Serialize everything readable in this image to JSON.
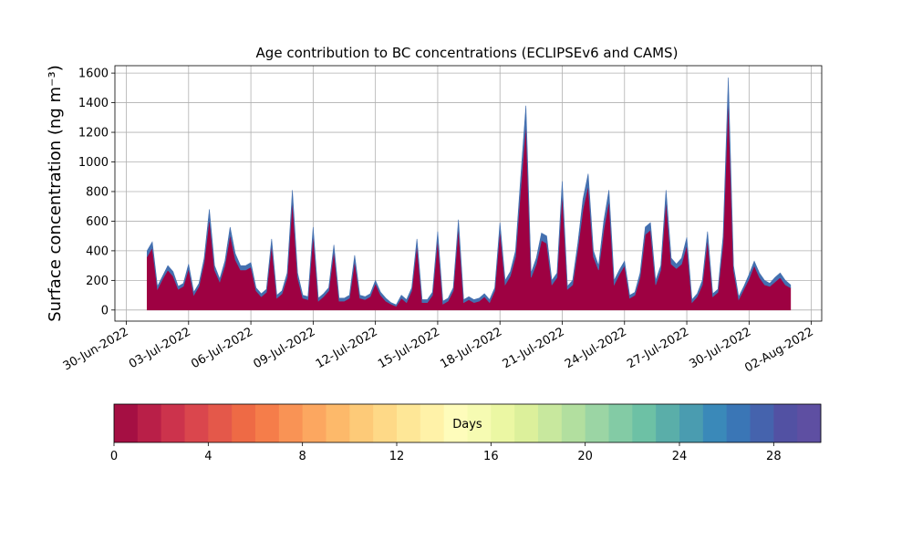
{
  "chart_data": {
    "type": "stacked_area",
    "title": "Age contribution to BC concentrations (ECLIPSEv6 and CAMS)",
    "ylabel": "Surface concentration (ng m⁻³)",
    "xlim": [
      -0.55,
      33.5
    ],
    "ylim": [
      -75,
      1650
    ],
    "xticks": [
      {
        "value": 0,
        "label": "30-Jun-2022"
      },
      {
        "value": 3,
        "label": "03-Jul-2022"
      },
      {
        "value": 6,
        "label": "06-Jul-2022"
      },
      {
        "value": 9,
        "label": "09-Jul-2022"
      },
      {
        "value": 12,
        "label": "12-Jul-2022"
      },
      {
        "value": 15,
        "label": "15-Jul-2022"
      },
      {
        "value": 18,
        "label": "18-Jul-2022"
      },
      {
        "value": 21,
        "label": "21-Jul-2022"
      },
      {
        "value": 24,
        "label": "24-Jul-2022"
      },
      {
        "value": 27,
        "label": "27-Jul-2022"
      },
      {
        "value": 30,
        "label": "30-Jul-2022"
      },
      {
        "value": 33,
        "label": "02-Aug-2022"
      }
    ],
    "yticks": [
      0,
      200,
      400,
      600,
      800,
      1000,
      1200,
      1400,
      1600
    ],
    "grid": true,
    "x": [
      1,
      1.25,
      1.5,
      1.75,
      2,
      2.25,
      2.5,
      2.75,
      3,
      3.25,
      3.5,
      3.75,
      4,
      4.25,
      4.5,
      4.75,
      5,
      5.25,
      5.5,
      5.75,
      6,
      6.25,
      6.5,
      6.75,
      7,
      7.25,
      7.5,
      7.75,
      8,
      8.25,
      8.5,
      8.75,
      9,
      9.25,
      9.5,
      9.75,
      10,
      10.25,
      10.5,
      10.75,
      11,
      11.25,
      11.5,
      11.75,
      12,
      12.25,
      12.5,
      12.75,
      13,
      13.25,
      13.5,
      13.75,
      14,
      14.25,
      14.5,
      14.75,
      15,
      15.25,
      15.5,
      15.75,
      16,
      16.25,
      16.5,
      16.75,
      17,
      17.25,
      17.5,
      17.75,
      18,
      18.25,
      18.5,
      18.75,
      19,
      19.25,
      19.5,
      19.75,
      20,
      20.25,
      20.5,
      20.75,
      21,
      21.25,
      21.5,
      21.75,
      22,
      22.25,
      22.5,
      22.75,
      23,
      23.25,
      23.5,
      23.75,
      24,
      24.25,
      24.5,
      24.75,
      25,
      25.25,
      25.5,
      25.75,
      26,
      26.25,
      26.5,
      26.75,
      27,
      27.25,
      27.5,
      27.75,
      28,
      28.25,
      28.5,
      28.75,
      29,
      29.25,
      29.5,
      29.75,
      30,
      30.25,
      30.5,
      30.75,
      31,
      31.25,
      31.5,
      31.75,
      32
    ],
    "series": [
      {
        "color": "#9e0142",
        "values": [
          360,
          420,
          140,
          210,
          270,
          230,
          140,
          160,
          280,
          100,
          160,
          320,
          620,
          270,
          190,
          300,
          510,
          340,
          270,
          270,
          290,
          130,
          90,
          120,
          440,
          80,
          110,
          220,
          740,
          220,
          80,
          70,
          510,
          60,
          90,
          130,
          400,
          60,
          60,
          80,
          330,
          80,
          70,
          90,
          180,
          100,
          60,
          40,
          25,
          80,
          50,
          130,
          440,
          50,
          50,
          100,
          480,
          40,
          60,
          130,
          560,
          50,
          70,
          50,
          60,
          90,
          50,
          130,
          540,
          170,
          230,
          360,
          820,
          1260,
          220,
          310,
          470,
          450,
          170,
          220,
          790,
          140,
          170,
          410,
          680,
          840,
          360,
          270,
          540,
          740,
          170,
          240,
          300,
          80,
          100,
          220,
          510,
          540,
          170,
          270,
          740,
          310,
          280,
          310,
          440,
          50,
          90,
          170,
          480,
          90,
          120,
          450,
          1440,
          270,
          70,
          140,
          210,
          300,
          220,
          170,
          160,
          190,
          220,
          170,
          150
        ]
      },
      {
        "color": "#4470b0",
        "values": [
          40,
          40,
          20,
          20,
          30,
          30,
          20,
          20,
          30,
          20,
          20,
          30,
          60,
          30,
          20,
          30,
          50,
          40,
          30,
          30,
          30,
          20,
          20,
          20,
          40,
          20,
          20,
          30,
          70,
          30,
          20,
          20,
          50,
          20,
          20,
          20,
          40,
          20,
          20,
          20,
          40,
          20,
          20,
          20,
          20,
          20,
          20,
          10,
          10,
          20,
          20,
          20,
          40,
          20,
          20,
          20,
          50,
          20,
          20,
          20,
          50,
          20,
          20,
          20,
          20,
          20,
          20,
          20,
          50,
          30,
          30,
          40,
          80,
          120,
          30,
          40,
          50,
          50,
          30,
          30,
          80,
          20,
          30,
          40,
          70,
          80,
          40,
          30,
          60,
          70,
          30,
          30,
          30,
          20,
          20,
          30,
          50,
          50,
          30,
          30,
          70,
          40,
          30,
          40,
          50,
          20,
          20,
          30,
          50,
          20,
          20,
          50,
          130,
          30,
          20,
          20,
          30,
          30,
          30,
          30,
          20,
          30,
          30,
          30,
          20
        ]
      }
    ],
    "colorbar": {
      "label": "Days",
      "lim": [
        0,
        30
      ],
      "ticks": [
        0,
        4,
        8,
        12,
        16,
        20,
        24,
        28
      ],
      "colors": [
        "#a50f43",
        "#b91f48",
        "#cc334c",
        "#da464d",
        "#e4584a",
        "#ee6a45",
        "#f57d4a",
        "#f99355",
        "#fca760",
        "#fdb96a",
        "#fdca78",
        "#fed987",
        "#fee797",
        "#fff2a8",
        "#fefcbb",
        "#f6fbb2",
        "#ebf7a3",
        "#dcf09b",
        "#c8e89e",
        "#b2df9f",
        "#9bd5a4",
        "#83cba5",
        "#6dc1a5",
        "#5aaea9",
        "#4a9cb0",
        "#3a89b9",
        "#3a76b6",
        "#4563ad",
        "#5251a3",
        "#5e4fa2"
      ]
    }
  }
}
